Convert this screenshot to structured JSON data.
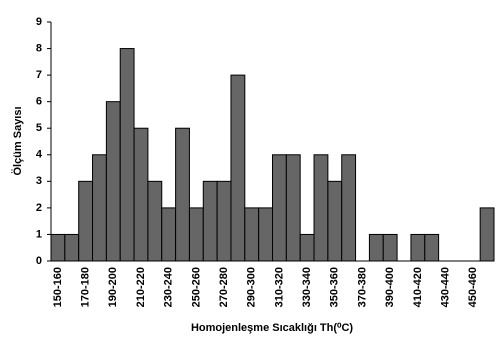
{
  "chart_data": {
    "type": "bar",
    "x_label": "Homojenleşme  Sıcaklığı Th(⁰C)",
    "y_label": "Ölçüm Sayısı",
    "categories": [
      "150-160",
      null,
      "170-180",
      null,
      "190-200",
      null,
      "210-220",
      null,
      "230-240",
      null,
      "250-260",
      null,
      "270-280",
      null,
      "290-300",
      null,
      "310-320",
      null,
      "330-340",
      null,
      "350-360",
      null,
      "370-380",
      null,
      "390-400",
      null,
      "410-420",
      null,
      "430-440",
      null,
      "450-460",
      null
    ],
    "values": [
      1,
      1,
      3,
      4,
      6,
      8,
      5,
      3,
      2,
      5,
      2,
      3,
      3,
      7,
      2,
      2,
      4,
      4,
      1,
      4,
      3,
      4,
      0,
      1,
      1,
      0,
      1,
      1,
      0,
      0,
      0,
      2
    ],
    "color": "#666666",
    "ylim": [
      0,
      9
    ],
    "yticks": [
      0,
      1,
      2,
      3,
      4,
      5,
      6,
      7,
      8,
      9
    ]
  }
}
